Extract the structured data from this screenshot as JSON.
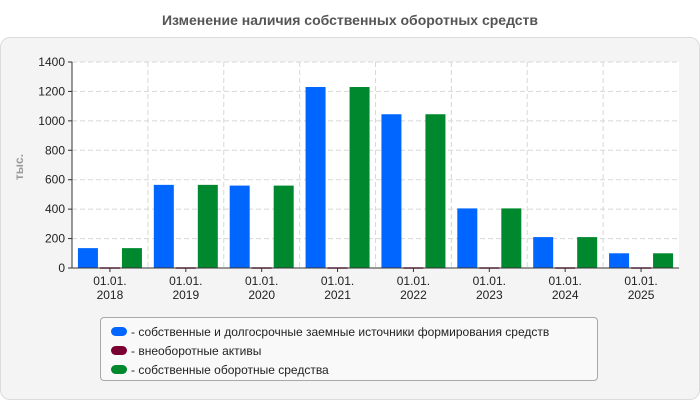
{
  "title": "Изменение наличия собственных оборотных средств",
  "colors": {
    "background": "#ffffff",
    "panel": "#f4f4f4",
    "plot": "#ffffff",
    "grid": "#d8d8d8"
  },
  "chart_data": {
    "type": "bar",
    "title": "Изменение наличия собственных оборотных средств",
    "ylabel": "тыс.",
    "xlabel": "",
    "ylim": [
      0,
      1400
    ],
    "yticks": [
      0,
      200,
      400,
      600,
      800,
      1000,
      1200,
      1400
    ],
    "grid": true,
    "legend_position": "bottom",
    "categories": [
      [
        "01.01.",
        "2018"
      ],
      [
        "01.01.",
        "2019"
      ],
      [
        "01.01.",
        "2020"
      ],
      [
        "01.01.",
        "2021"
      ],
      [
        "01.01.",
        "2022"
      ],
      [
        "01.01.",
        "2023"
      ],
      [
        "01.01.",
        "2024"
      ],
      [
        "01.01.",
        "2025"
      ]
    ],
    "series": [
      {
        "name": "- собственные и долгосрочные заемные источники формирования средств",
        "color": "#0066ff",
        "values": [
          135,
          565,
          560,
          1230,
          1045,
          405,
          210,
          100
        ]
      },
      {
        "name": "- внеоборотные активы",
        "color": "#7a0033",
        "values": [
          5,
          5,
          5,
          5,
          5,
          5,
          5,
          5
        ]
      },
      {
        "name": "- собственные оборотные средства",
        "color": "#00882e",
        "values": [
          135,
          565,
          560,
          1230,
          1045,
          405,
          210,
          100
        ]
      }
    ]
  }
}
